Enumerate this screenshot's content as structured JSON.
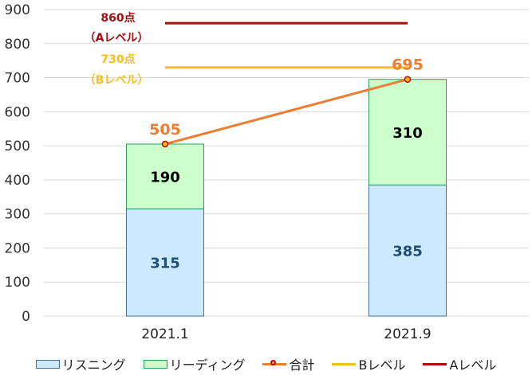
{
  "chart_data": {
    "type": "bar",
    "stacked": true,
    "title": "",
    "xlabel": "",
    "ylabel": "",
    "ylim": [
      0,
      900
    ],
    "yticks": [
      0,
      100,
      200,
      300,
      400,
      500,
      600,
      700,
      800,
      900
    ],
    "grid": true,
    "legend_position": "bottom",
    "categories": [
      "2021.1",
      "2021.9"
    ],
    "series": [
      {
        "name": "リスニング",
        "type": "bar",
        "values": [
          315,
          385
        ],
        "color": "#cce9ff",
        "border": "#41719c",
        "label_color": "#1f4e79"
      },
      {
        "name": "リーディング",
        "type": "bar",
        "values": [
          190,
          310
        ],
        "color": "#ccffcc",
        "border": "#2e9e5b",
        "label_color": "#000000"
      },
      {
        "name": "合計",
        "type": "line",
        "values": [
          505,
          695
        ],
        "color": "#ed7d31",
        "marker_fill": "#ffc000",
        "marker_edge": "#c00000",
        "label_color": "#ed7d31"
      },
      {
        "name": "Bレベル",
        "type": "line",
        "values": [
          730,
          730
        ],
        "color": "#f4c01e"
      },
      {
        "name": "Aレベル",
        "type": "line",
        "values": [
          860,
          860
        ],
        "color": "#a50f0f"
      }
    ],
    "annotations": [
      {
        "text_line1": "860点",
        "text_line2": "（Aレベル）",
        "color": "#a50f0f"
      },
      {
        "text_line1": "730点",
        "text_line2": "（Bレベル）",
        "color": "#f4c01e"
      }
    ]
  },
  "legend": [
    {
      "label": "リスニング",
      "kind": "box",
      "fill": "#cce9ff",
      "border": "#41719c"
    },
    {
      "label": "リーディング",
      "kind": "box",
      "fill": "#ccffcc",
      "border": "#2e9e5b"
    },
    {
      "label": "合計",
      "kind": "line-marker",
      "color": "#ed7d31"
    },
    {
      "label": "Bレベル",
      "kind": "line",
      "color": "#f4c01e"
    },
    {
      "label": "Aレベル",
      "kind": "line",
      "color": "#a50f0f"
    }
  ]
}
